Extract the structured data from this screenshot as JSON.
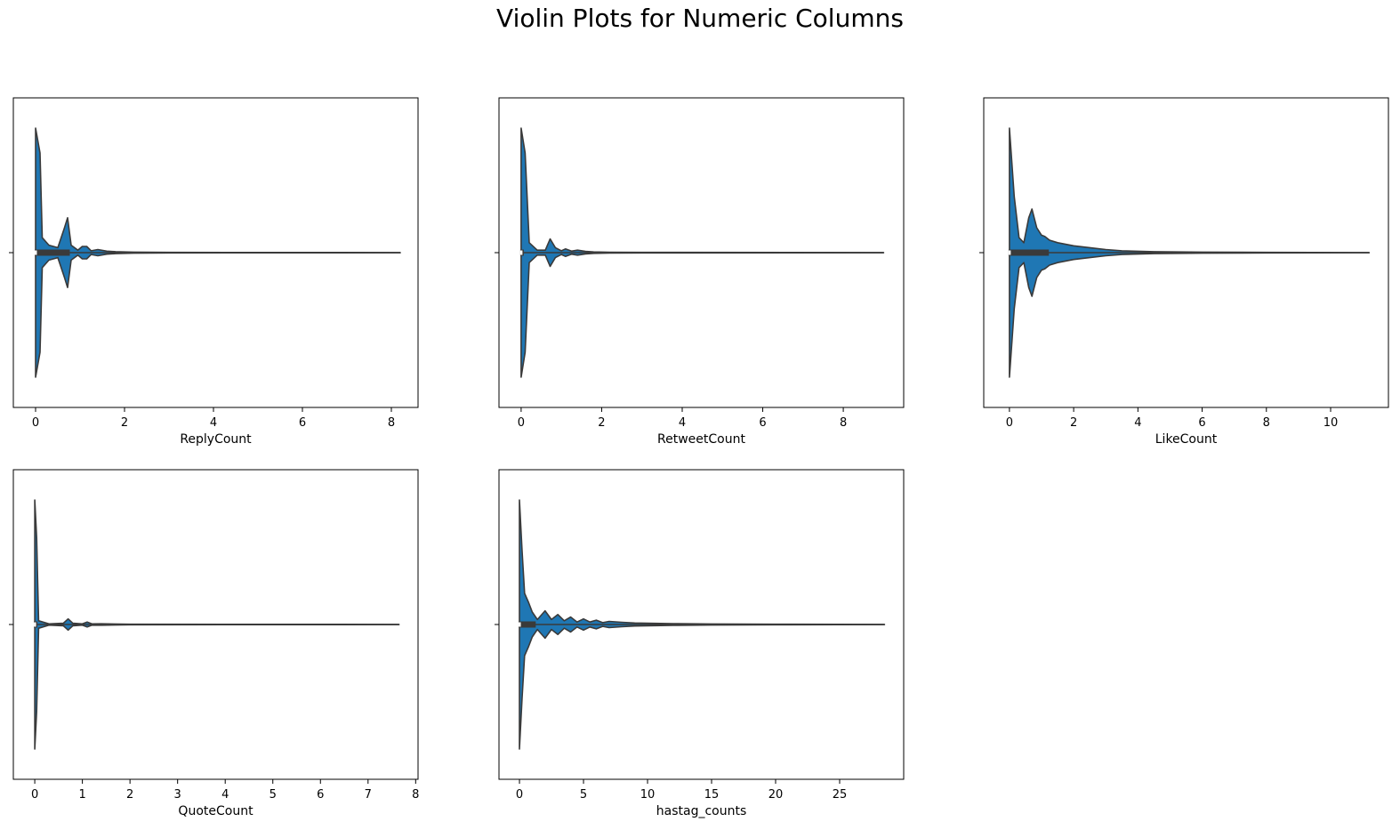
{
  "title": "Violin Plots for Numeric Columns",
  "colors": {
    "violin_fill": "#1f77b4",
    "violin_edge": "#3a3a3a",
    "box": "#3a3a3a",
    "median": "#ffffff",
    "frame": "#000000"
  },
  "chart_data": [
    {
      "type": "violin",
      "xlabel": "ReplyCount",
      "xlim": [
        -0.5,
        8.6
      ],
      "xticks": [
        0,
        2,
        4,
        6,
        8
      ],
      "range": [
        0,
        8.2
      ],
      "box": {
        "q1": 0,
        "median": 0,
        "q3": 0.75
      },
      "density": [
        [
          0,
          1.0
        ],
        [
          0.1,
          0.8
        ],
        [
          0.15,
          0.12
        ],
        [
          0.3,
          0.06
        ],
        [
          0.5,
          0.04
        ],
        [
          0.65,
          0.2
        ],
        [
          0.72,
          0.28
        ],
        [
          0.8,
          0.06
        ],
        [
          0.95,
          0.02
        ],
        [
          1.05,
          0.05
        ],
        [
          1.15,
          0.05
        ],
        [
          1.25,
          0.015
        ],
        [
          1.4,
          0.025
        ],
        [
          1.6,
          0.012
        ],
        [
          1.8,
          0.008
        ],
        [
          2.2,
          0.004
        ],
        [
          3.0,
          0.002
        ],
        [
          8.2,
          0.001
        ]
      ]
    },
    {
      "type": "violin",
      "xlabel": "RetweetCount",
      "xlim": [
        -0.55,
        9.5
      ],
      "xticks": [
        0,
        2,
        4,
        6,
        8
      ],
      "range": [
        0,
        9.0
      ],
      "box": {
        "q1": 0,
        "median": 0,
        "q3": 0
      },
      "density": [
        [
          0,
          1.0
        ],
        [
          0.1,
          0.8
        ],
        [
          0.2,
          0.08
        ],
        [
          0.4,
          0.02
        ],
        [
          0.6,
          0.02
        ],
        [
          0.72,
          0.11
        ],
        [
          0.85,
          0.04
        ],
        [
          1.0,
          0.015
        ],
        [
          1.1,
          0.03
        ],
        [
          1.25,
          0.012
        ],
        [
          1.4,
          0.02
        ],
        [
          1.6,
          0.01
        ],
        [
          1.8,
          0.006
        ],
        [
          2.2,
          0.003
        ],
        [
          3.0,
          0.002
        ],
        [
          9.0,
          0.001
        ]
      ]
    },
    {
      "type": "violin",
      "xlabel": "LikeCount",
      "xlim": [
        -0.8,
        11.8
      ],
      "xticks": [
        0,
        2,
        4,
        6,
        8,
        10
      ],
      "range": [
        0,
        11.2
      ],
      "box": {
        "q1": 0,
        "median": 0,
        "q3": 1.2
      },
      "density": [
        [
          0,
          1.0
        ],
        [
          0.15,
          0.45
        ],
        [
          0.3,
          0.12
        ],
        [
          0.45,
          0.08
        ],
        [
          0.6,
          0.28
        ],
        [
          0.7,
          0.35
        ],
        [
          0.85,
          0.2
        ],
        [
          1.0,
          0.14
        ],
        [
          1.1,
          0.13
        ],
        [
          1.25,
          0.1
        ],
        [
          1.5,
          0.08
        ],
        [
          2.0,
          0.055
        ],
        [
          2.5,
          0.04
        ],
        [
          3.0,
          0.025
        ],
        [
          3.5,
          0.015
        ],
        [
          4.5,
          0.008
        ],
        [
          6.0,
          0.004
        ],
        [
          8.0,
          0.002
        ],
        [
          11.2,
          0.001
        ]
      ]
    },
    {
      "type": "violin",
      "xlabel": "QuoteCount",
      "xlim": [
        -0.45,
        8.05
      ],
      "xticks": [
        0,
        1,
        2,
        3,
        4,
        5,
        6,
        7,
        8
      ],
      "range": [
        0,
        7.65
      ],
      "box": {
        "q1": 0,
        "median": 0,
        "q3": 0
      },
      "density": [
        [
          0,
          1.0
        ],
        [
          0.04,
          0.7
        ],
        [
          0.08,
          0.03
        ],
        [
          0.3,
          0.005
        ],
        [
          0.6,
          0.01
        ],
        [
          0.7,
          0.045
        ],
        [
          0.8,
          0.01
        ],
        [
          1.0,
          0.005
        ],
        [
          1.1,
          0.02
        ],
        [
          1.2,
          0.005
        ],
        [
          1.4,
          0.006
        ],
        [
          2.0,
          0.002
        ],
        [
          7.65,
          0.001
        ]
      ]
    },
    {
      "type": "violin",
      "xlabel": "hastag_counts",
      "xlim": [
        -1.6,
        30.0
      ],
      "xticks": [
        0,
        5,
        10,
        15,
        20,
        25
      ],
      "range": [
        0,
        28.5
      ],
      "box": {
        "q1": 0,
        "median": 0,
        "q3": 1.2
      },
      "density": [
        [
          0,
          1.0
        ],
        [
          0.2,
          0.6
        ],
        [
          0.4,
          0.25
        ],
        [
          0.7,
          0.18
        ],
        [
          1.0,
          0.1
        ],
        [
          1.4,
          0.04
        ],
        [
          2.0,
          0.11
        ],
        [
          2.5,
          0.04
        ],
        [
          3.0,
          0.08
        ],
        [
          3.5,
          0.03
        ],
        [
          4.0,
          0.06
        ],
        [
          4.5,
          0.02
        ],
        [
          5.0,
          0.045
        ],
        [
          5.5,
          0.02
        ],
        [
          6.0,
          0.035
        ],
        [
          6.5,
          0.015
        ],
        [
          7.0,
          0.025
        ],
        [
          8.0,
          0.018
        ],
        [
          9.0,
          0.012
        ],
        [
          10.0,
          0.01
        ],
        [
          12.0,
          0.007
        ],
        [
          15.0,
          0.004
        ],
        [
          20.0,
          0.002
        ],
        [
          28.5,
          0.001
        ]
      ]
    }
  ]
}
